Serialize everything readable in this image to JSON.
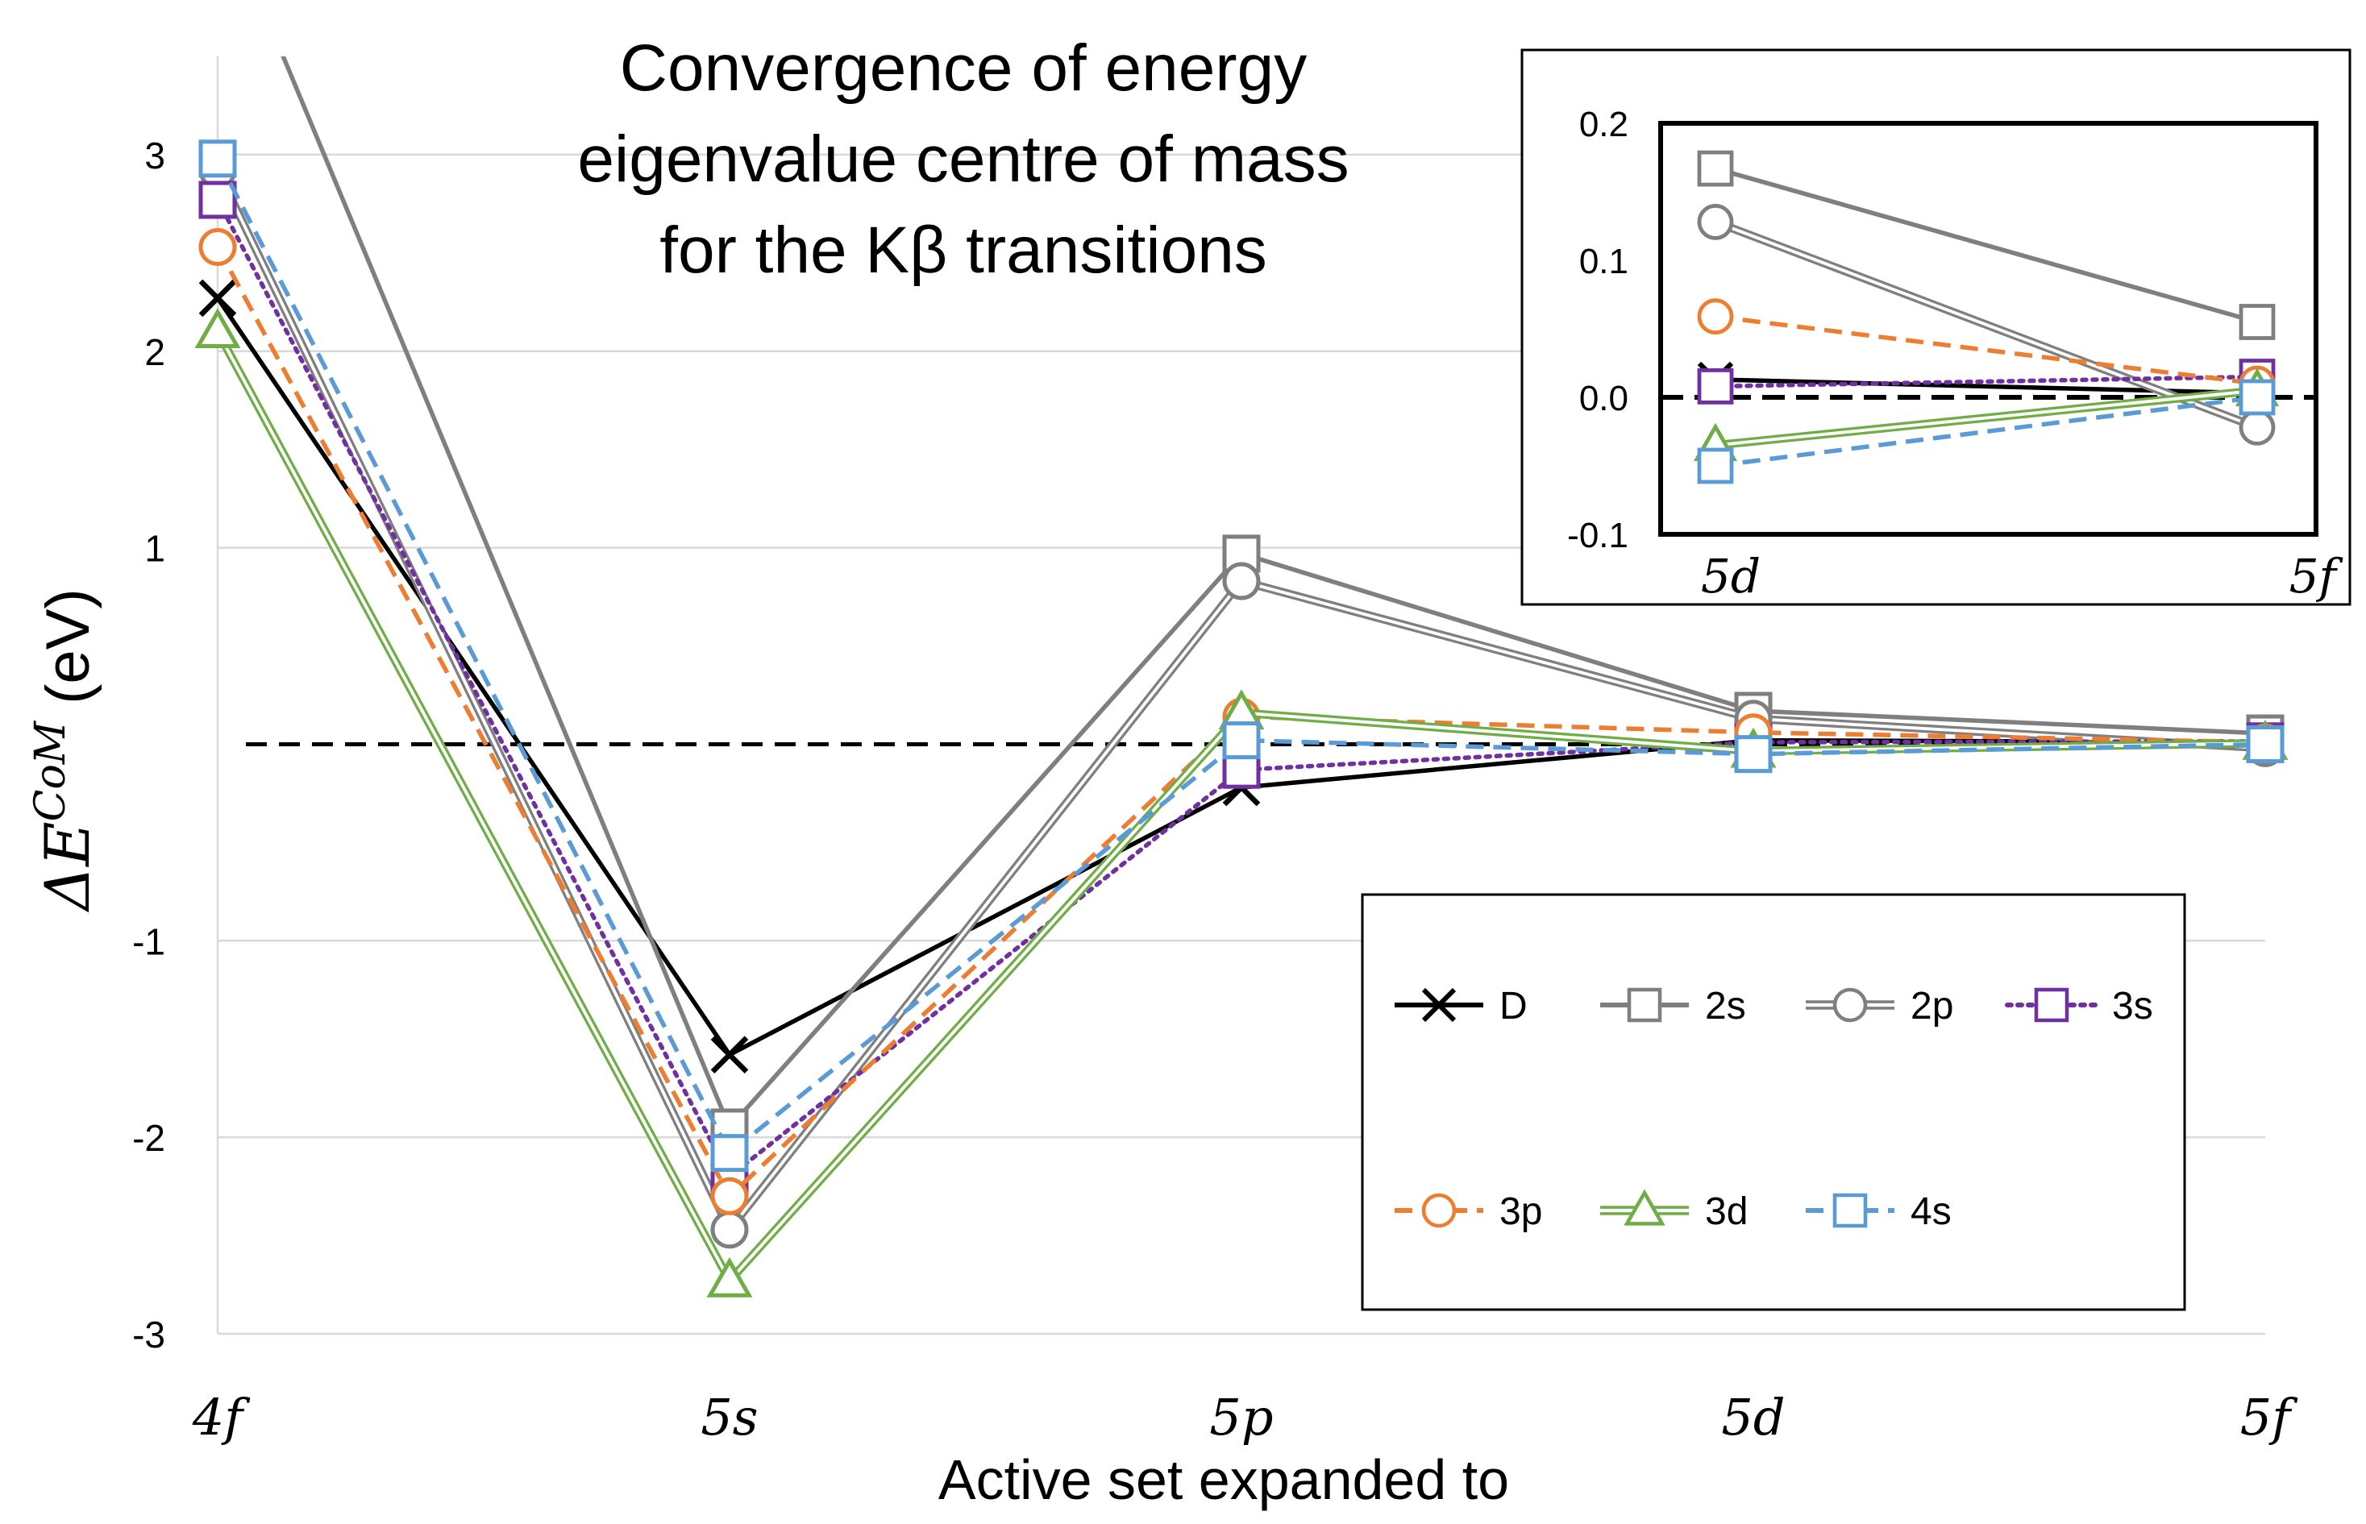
{
  "chart_data": [
    {
      "type": "line",
      "title_lines": [
        "Convergence of energy",
        "eigenvalue centre of mass",
        "for the Kβ transitions"
      ],
      "xlabel": "Active set expanded to",
      "ylabel_prefix": "ΔE",
      "ylabel_sup": "CoM",
      "ylabel_suffix": " (eV)",
      "categories": [
        "4f",
        "5s",
        "5p",
        "5d",
        "5f"
      ],
      "ylim": [
        -3,
        3.5
      ],
      "yticks": [
        -3,
        -2,
        -1,
        0,
        1,
        2,
        3
      ],
      "ytick_labels": [
        "-3",
        "-2",
        "-1",
        "",
        "1",
        "2",
        "3"
      ],
      "gridlines": true,
      "zero_line": "dashed",
      "legend_position": "bottom-right",
      "series": [
        {
          "name": "D",
          "color": "#000000",
          "marker": "x",
          "dash": "solid",
          "double": false,
          "values": [
            2.27,
            -1.58,
            -0.22,
            0.02,
            0.01
          ]
        },
        {
          "name": "2s",
          "color": "#7f7f7f",
          "marker": "square",
          "dash": "solid",
          "double": false,
          "values": [
            4.3,
            -1.95,
            0.97,
            0.17,
            0.055
          ]
        },
        {
          "name": "2p",
          "color": "#7f7f7f",
          "marker": "circle",
          "dash": "solid",
          "double": true,
          "values": [
            2.92,
            -2.47,
            0.83,
            0.13,
            -0.02
          ]
        },
        {
          "name": "3s",
          "color": "#7030a0",
          "marker": "square",
          "dash": "dotted",
          "double": false,
          "values": [
            2.77,
            -2.2,
            -0.13,
            0.01,
            0.015
          ]
        },
        {
          "name": "3p",
          "color": "#ed7d31",
          "marker": "circle",
          "dash": "dashed",
          "double": false,
          "values": [
            2.53,
            -2.3,
            0.14,
            0.06,
            0.01
          ]
        },
        {
          "name": "3d",
          "color": "#70ad47",
          "marker": "triangle",
          "dash": "solid",
          "double": true,
          "values": [
            2.1,
            -2.73,
            0.16,
            -0.035,
            0.005
          ]
        },
        {
          "name": "4s",
          "color": "#5b9bd5",
          "marker": "square",
          "dash": "dashed",
          "double": false,
          "values": [
            2.98,
            -2.08,
            0.02,
            -0.05,
            0.0
          ]
        }
      ]
    },
    {
      "type": "line",
      "categories": [
        "5d",
        "5f"
      ],
      "ylim": [
        -0.1,
        0.2
      ],
      "yticks": [
        -0.1,
        0.0,
        0.1,
        0.2
      ],
      "ytick_labels": [
        "-0.1",
        "0.0",
        "0.1",
        "0.2"
      ],
      "zero_line": "dashed",
      "series": [
        {
          "name": "D",
          "values": [
            0.013,
            0.003
          ]
        },
        {
          "name": "2s",
          "values": [
            0.167,
            0.055
          ]
        },
        {
          "name": "2p",
          "values": [
            0.128,
            -0.022
          ]
        },
        {
          "name": "3s",
          "values": [
            0.008,
            0.015
          ]
        },
        {
          "name": "3p",
          "values": [
            0.059,
            0.01
          ]
        },
        {
          "name": "3d",
          "values": [
            -0.035,
            0.005
          ]
        },
        {
          "name": "4s",
          "values": [
            -0.05,
            0.0
          ]
        }
      ]
    }
  ]
}
